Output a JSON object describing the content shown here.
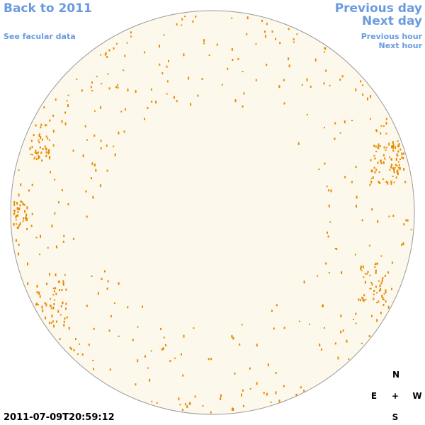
{
  "header": {
    "back": "Back to 2011",
    "facular": "See facular data",
    "previous_day": "Previous day",
    "next_day": "Next day",
    "previous_hour": "Previous hour",
    "next_hour": "Next hour"
  },
  "timestamp": "2011-07-09T20:59:12",
  "compass": {
    "north": "N",
    "east": "E",
    "center": "+",
    "west": "W",
    "south": "S"
  }
}
